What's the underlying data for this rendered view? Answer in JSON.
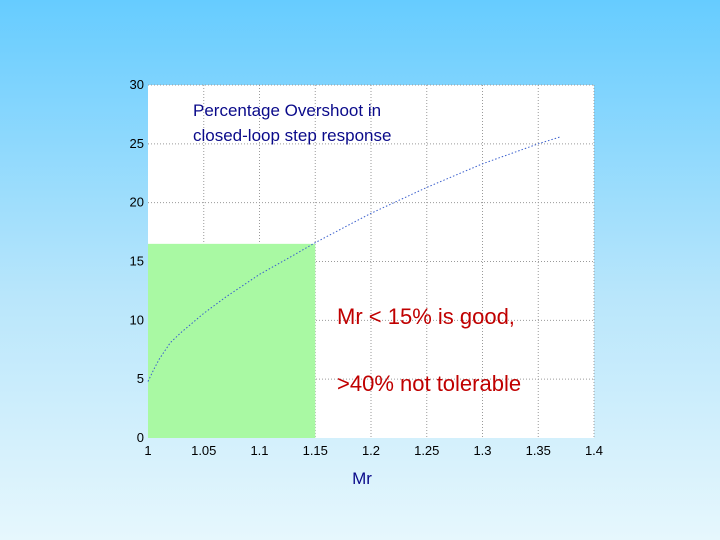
{
  "chart_data": {
    "type": "line",
    "title": [
      "Percentage Overshoot in",
      "closed-loop step response"
    ],
    "xlabel": "Mr",
    "ylabel": "",
    "xlim": [
      1,
      1.4
    ],
    "ylim": [
      0,
      30
    ],
    "xticks": [
      1,
      1.05,
      1.1,
      1.15,
      1.2,
      1.25,
      1.3,
      1.35,
      1.4
    ],
    "xtick_labels": [
      "1",
      "1.05",
      "1.1",
      "1.15",
      "1.2",
      "1.25",
      "1.3",
      "1.35",
      "1.4"
    ],
    "yticks": [
      0,
      5,
      10,
      15,
      20,
      25,
      30
    ],
    "ytick_labels": [
      "0",
      "5",
      "10",
      "15",
      "20",
      "25",
      "30"
    ],
    "grid": true,
    "series": [
      {
        "x": [
          1.0,
          1.005,
          1.01,
          1.02,
          1.03,
          1.05,
          1.07,
          1.1,
          1.13,
          1.15,
          1.18,
          1.2,
          1.25,
          1.3,
          1.35,
          1.37
        ],
        "y": [
          4.8,
          5.8,
          6.7,
          8.1,
          9.0,
          10.6,
          12.0,
          13.9,
          15.5,
          16.6,
          18.1,
          19.1,
          21.3,
          23.3,
          25.0,
          25.6
        ],
        "color": "#3a5fcd",
        "style": "dotted"
      }
    ],
    "shaded_region": {
      "x": [
        1.0,
        1.15
      ],
      "y": [
        0,
        16.5
      ],
      "color": "#a9f9a3"
    },
    "annotations": [
      "Mr < 15% is good,",
      ">40% not tolerable"
    ]
  }
}
